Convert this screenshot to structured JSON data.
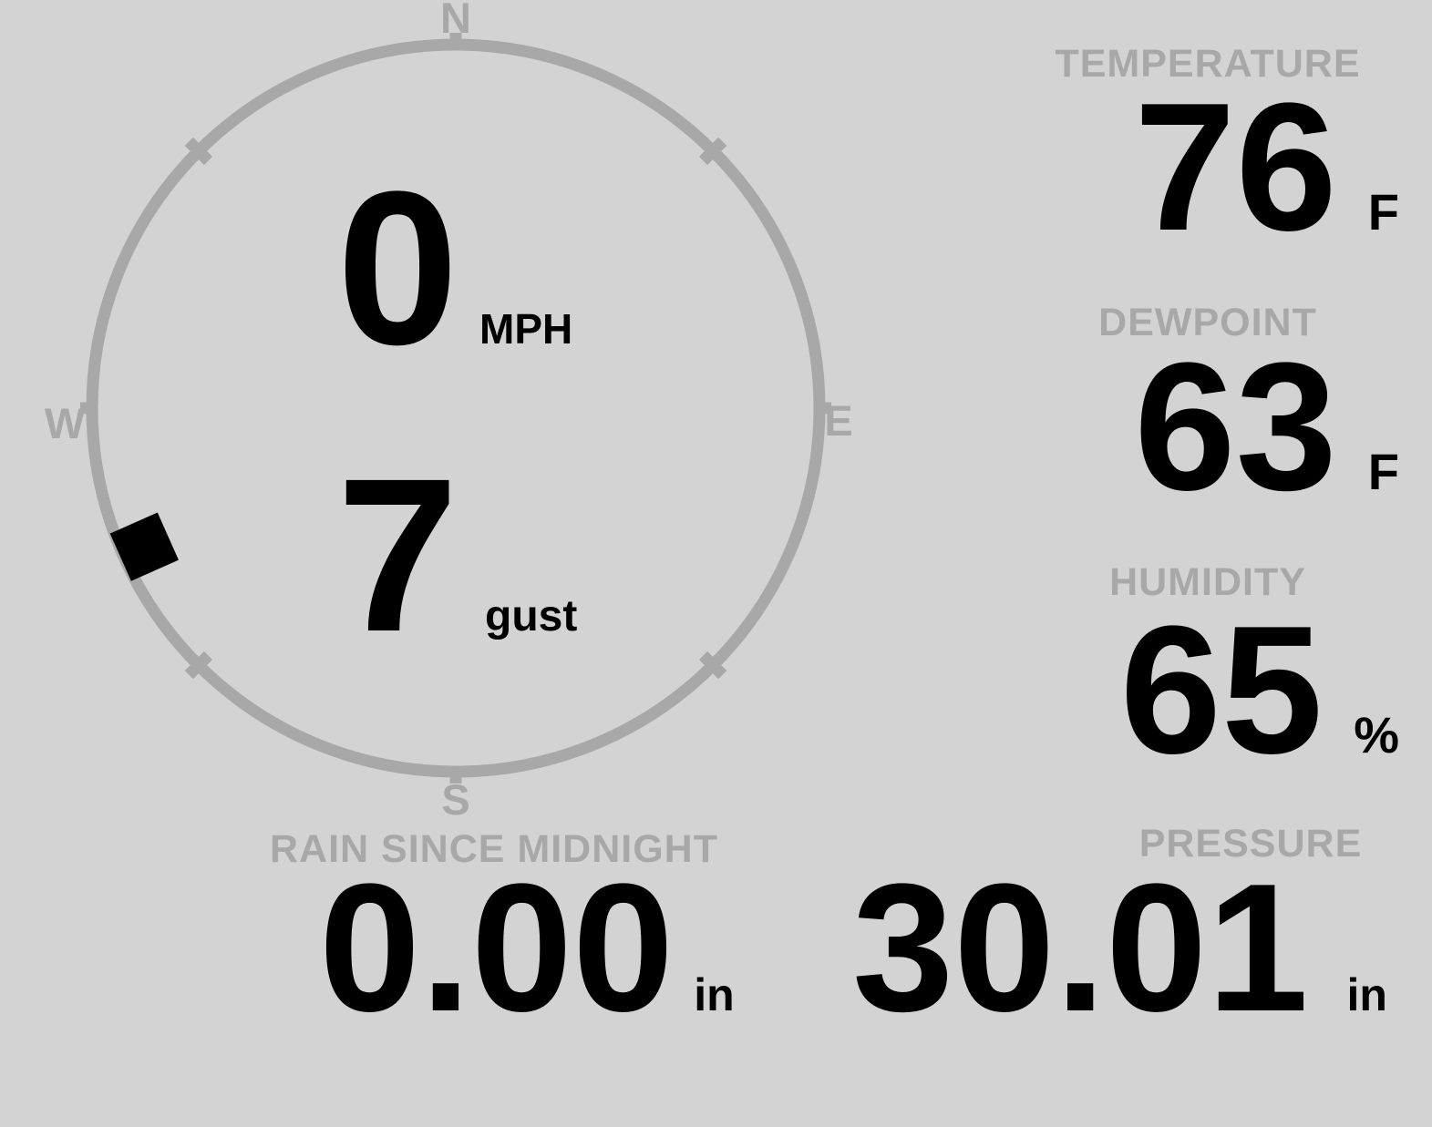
{
  "colors": {
    "background": "#d3d3d3",
    "muted": "#a8a8a8",
    "value": "#000000",
    "marker": "#000000"
  },
  "compass": {
    "north": "N",
    "east": "E",
    "south": "S",
    "west": "W",
    "speed": {
      "value": "0",
      "unit": "MPH"
    },
    "gust": {
      "value": "7",
      "unit": "gust"
    },
    "wind_direction_deg": 246
  },
  "metrics": {
    "temperature": {
      "label": "TEMPERATURE",
      "value": "76",
      "unit": "F"
    },
    "dewpoint": {
      "label": "DEWPOINT",
      "value": "63",
      "unit": "F"
    },
    "humidity": {
      "label": "HUMIDITY",
      "value": "65",
      "unit": "%"
    },
    "rain_since_midnight": {
      "label": "RAIN SINCE MIDNIGHT",
      "value": "0.00",
      "unit": "in"
    },
    "pressure": {
      "label": "PRESSURE",
      "value": "30.01",
      "unit": "in"
    }
  }
}
